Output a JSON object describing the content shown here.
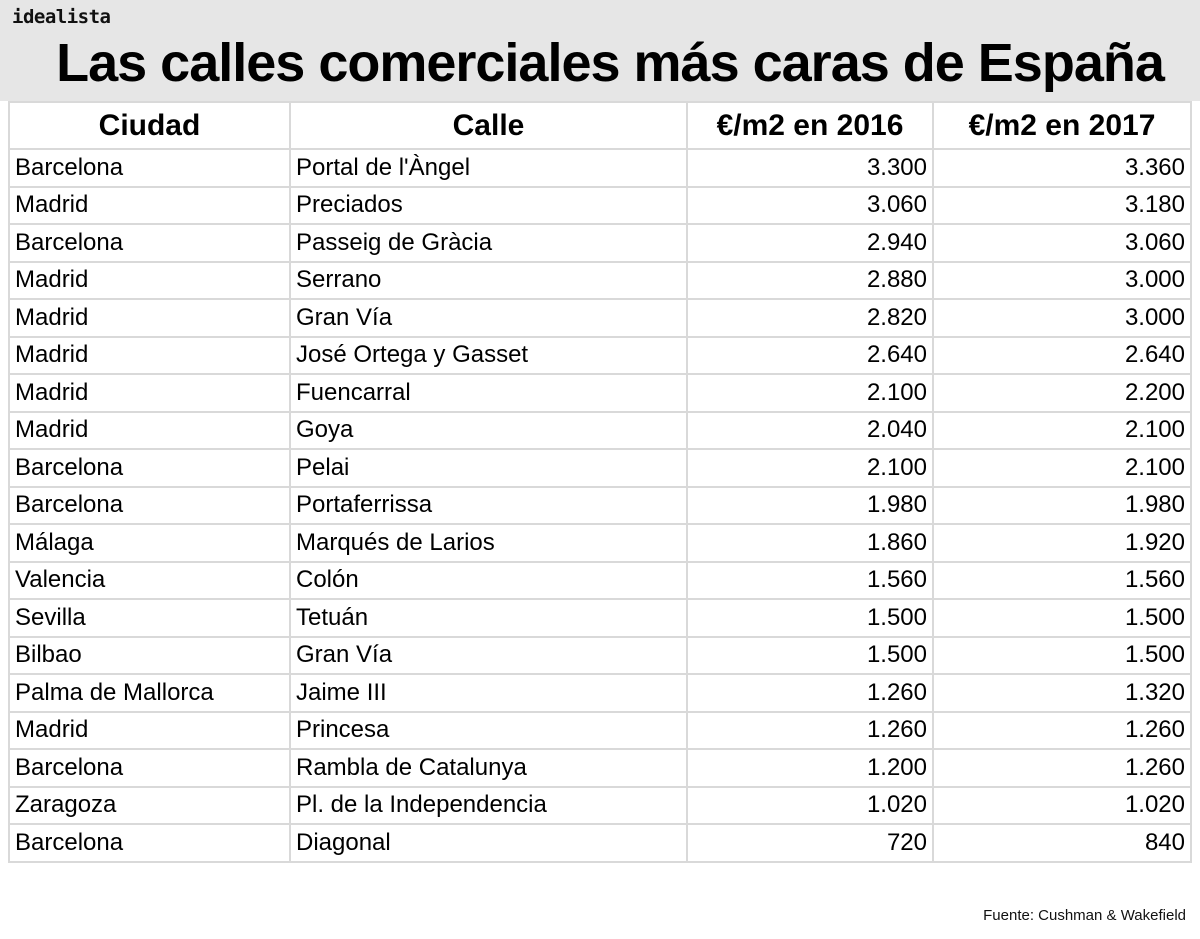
{
  "brand": "idealista",
  "title": "Las calles comerciales más caras de España",
  "table": {
    "columns": [
      "Ciudad",
      "Calle",
      "€/m2 en 2016",
      "€/m2 en 2017"
    ],
    "rows": [
      [
        "Barcelona",
        "Portal de l'Àngel",
        "3.300",
        "3.360"
      ],
      [
        "Madrid",
        "Preciados",
        "3.060",
        "3.180"
      ],
      [
        "Barcelona",
        "Passeig de Gràcia",
        "2.940",
        "3.060"
      ],
      [
        "Madrid",
        "Serrano",
        "2.880",
        "3.000"
      ],
      [
        "Madrid",
        "Gran Vía",
        "2.820",
        "3.000"
      ],
      [
        "Madrid",
        "José Ortega y Gasset",
        "2.640",
        "2.640"
      ],
      [
        "Madrid",
        "Fuencarral",
        "2.100",
        "2.200"
      ],
      [
        "Madrid",
        "Goya",
        "2.040",
        "2.100"
      ],
      [
        "Barcelona",
        "Pelai",
        "2.100",
        "2.100"
      ],
      [
        "Barcelona",
        "Portaferrissa",
        "1.980",
        "1.980"
      ],
      [
        "Málaga",
        "Marqués de Larios",
        "1.860",
        "1.920"
      ],
      [
        "Valencia",
        "Colón",
        "1.560",
        "1.560"
      ],
      [
        "Sevilla",
        "Tetuán",
        "1.500",
        "1.500"
      ],
      [
        "Bilbao",
        "Gran Vía",
        "1.500",
        "1.500"
      ],
      [
        "Palma de Mallorca",
        "Jaime III",
        "1.260",
        "1.320"
      ],
      [
        "Madrid",
        "Princesa",
        "1.260",
        "1.260"
      ],
      [
        "Barcelona",
        "Rambla de Catalunya",
        "1.200",
        "1.260"
      ],
      [
        "Zaragoza",
        "Pl. de la Independencia",
        "1.020",
        "1.020"
      ],
      [
        "Barcelona",
        "Diagonal",
        "720",
        "840"
      ]
    ]
  },
  "footer": "Fuente: Cushman & Wakefield",
  "colors": {
    "header_band": "#e6e6e6",
    "grid": "#d9d9d9"
  },
  "chart_data": {
    "type": "table",
    "title": "Las calles comerciales más caras de España",
    "columns": [
      "Ciudad",
      "Calle",
      "€/m2 en 2016",
      "€/m2 en 2017"
    ],
    "categories": [
      "Portal de l'Àngel (Barcelona)",
      "Preciados (Madrid)",
      "Passeig de Gràcia (Barcelona)",
      "Serrano (Madrid)",
      "Gran Vía (Madrid)",
      "José Ortega y Gasset (Madrid)",
      "Fuencarral (Madrid)",
      "Goya (Madrid)",
      "Pelai (Barcelona)",
      "Portaferrissa (Barcelona)",
      "Marqués de Larios (Málaga)",
      "Colón (Valencia)",
      "Tetuán (Sevilla)",
      "Gran Vía (Bilbao)",
      "Jaime III (Palma de Mallorca)",
      "Princesa (Madrid)",
      "Rambla de Catalunya (Barcelona)",
      "Pl. de la Independencia (Zaragoza)",
      "Diagonal (Barcelona)"
    ],
    "series": [
      {
        "name": "€/m2 en 2016",
        "values": [
          3300,
          3060,
          2940,
          2880,
          2820,
          2640,
          2100,
          2040,
          2100,
          1980,
          1860,
          1560,
          1500,
          1500,
          1260,
          1260,
          1200,
          1020,
          720
        ]
      },
      {
        "name": "€/m2 en 2017",
        "values": [
          3360,
          3180,
          3060,
          3000,
          3000,
          2640,
          2200,
          2100,
          2100,
          1980,
          1920,
          1560,
          1500,
          1500,
          1320,
          1260,
          1260,
          1020,
          840
        ]
      }
    ],
    "source": "Fuente: Cushman & Wakefield"
  }
}
